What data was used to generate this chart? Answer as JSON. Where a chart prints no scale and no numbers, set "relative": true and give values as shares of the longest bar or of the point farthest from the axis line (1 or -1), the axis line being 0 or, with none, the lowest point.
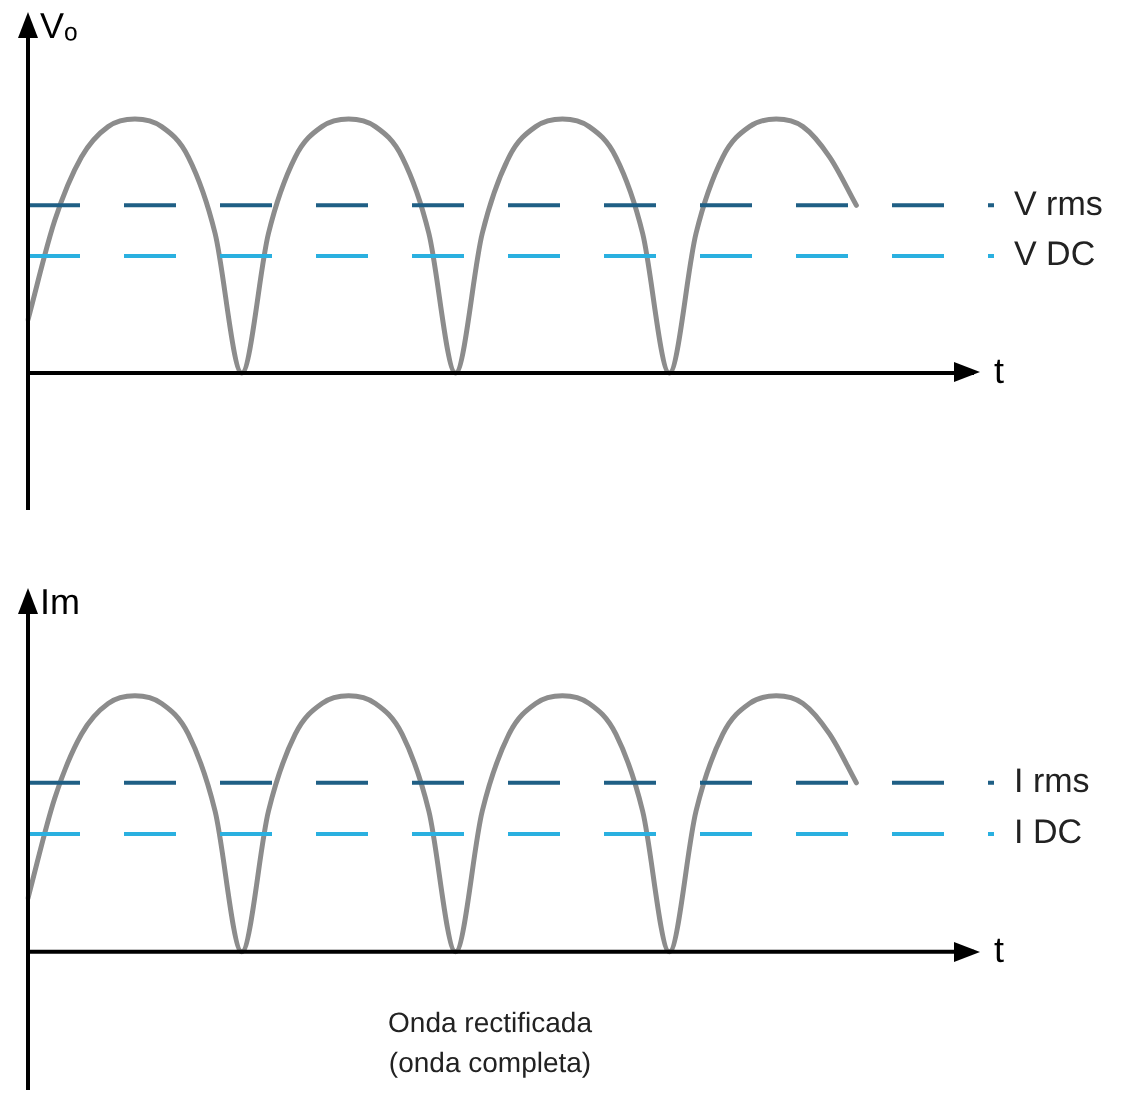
{
  "chart_data": [
    {
      "type": "line",
      "relative": true,
      "ylabel": "Vₒ",
      "xlabel": "t",
      "legend": false,
      "marker": "none",
      "line_style": "solid",
      "categories": [
        null,
        null,
        null,
        null,
        null,
        null,
        null,
        null,
        null,
        null,
        null,
        null,
        null,
        null,
        null,
        null,
        null,
        null,
        null,
        null,
        null,
        null,
        null,
        null,
        null,
        null,
        null,
        null,
        null,
        null,
        null,
        null,
        null,
        null,
        null,
        null,
        null
      ],
      "series": [
        {
          "color": "#8c8c8c",
          "values": [
            0.21,
            0.6,
            0.85,
            0.97,
            1,
            0.97,
            0.85,
            0.55,
            0,
            0.55,
            0.85,
            0.97,
            1,
            0.97,
            0.85,
            0.55,
            0,
            0.55,
            0.85,
            0.97,
            1,
            0.97,
            0.85,
            0.55,
            0,
            0.55,
            0.85,
            0.97,
            1,
            0.97,
            0.85,
            0.66,
            null,
            null,
            null,
            null,
            null
          ]
        }
      ],
      "ref_lines": [
        {
          "axis": "y",
          "value": 0.66,
          "label": "V rms",
          "color": "#1f5f85",
          "line_style": "dashed"
        },
        {
          "axis": "y",
          "value": 0.46,
          "label": "V DC",
          "color": "#2ab0e0",
          "line_style": "dashed"
        }
      ]
    },
    {
      "type": "line",
      "relative": true,
      "ylabel": "Im",
      "xlabel": "t",
      "legend": false,
      "marker": "none",
      "line_style": "solid",
      "categories": [
        null,
        null,
        null,
        null,
        null,
        null,
        null,
        null,
        null,
        null,
        null,
        null,
        null,
        null,
        null,
        null,
        null,
        null,
        null,
        null,
        null,
        null,
        null,
        null,
        null,
        null,
        null,
        null,
        null,
        null,
        null,
        null,
        null,
        null,
        null,
        null,
        null
      ],
      "series": [
        {
          "color": "#8c8c8c",
          "values": [
            0.21,
            0.6,
            0.85,
            0.97,
            1,
            0.97,
            0.85,
            0.55,
            0,
            0.55,
            0.85,
            0.97,
            1,
            0.97,
            0.85,
            0.55,
            0,
            0.55,
            0.85,
            0.97,
            1,
            0.97,
            0.85,
            0.55,
            0,
            0.55,
            0.85,
            0.97,
            1,
            0.97,
            0.85,
            0.66,
            null,
            null,
            null,
            null,
            null
          ]
        }
      ],
      "ref_lines": [
        {
          "axis": "y",
          "value": 0.66,
          "label": "I rms",
          "color": "#1f5f85",
          "line_style": "dashed"
        },
        {
          "axis": "y",
          "value": 0.46,
          "label": "I DC",
          "color": "#2ab0e0",
          "line_style": "dashed"
        }
      ],
      "annotations": [
        "Onda rectificada\n(onda completa)"
      ]
    }
  ]
}
